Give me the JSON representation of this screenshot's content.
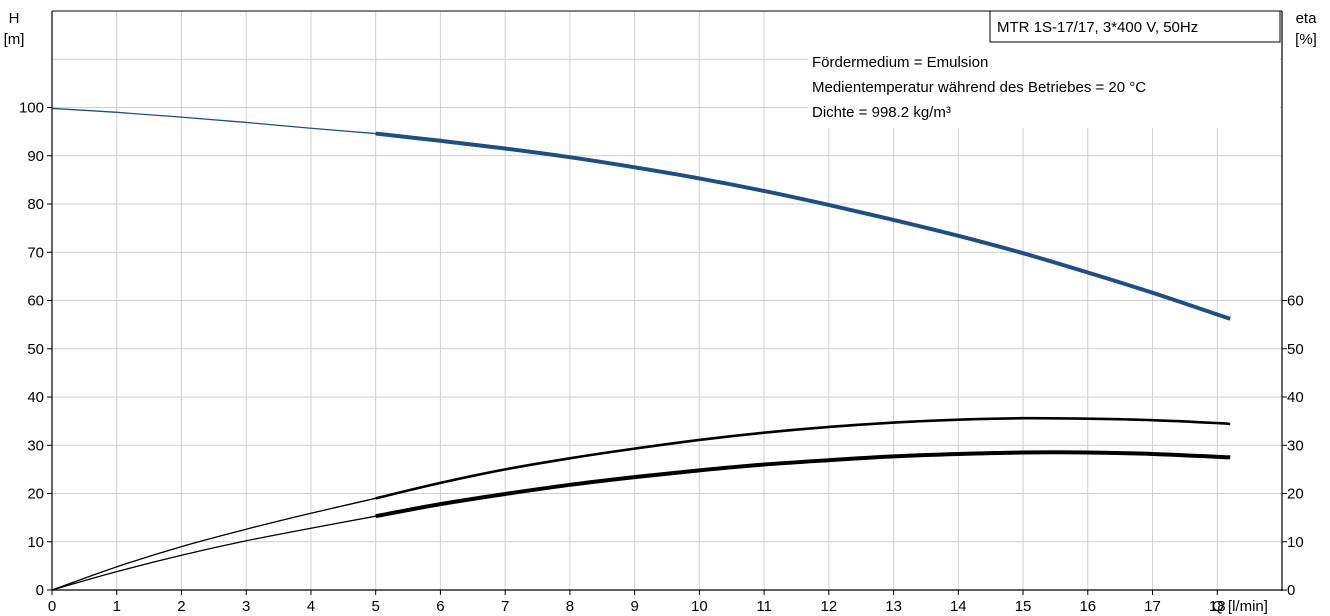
{
  "chart_data": {
    "type": "line",
    "title": "MTR 1S-17/17, 3*400 V, 50Hz",
    "annotations": [
      "Fördermedium = Emulsion",
      "Medientemperatur während des Betriebes = 20 °C",
      "Dichte = 998.2 kg/m³"
    ],
    "x_axis": {
      "label": "Q [l/min]",
      "ticks": [
        0,
        1,
        2,
        3,
        4,
        5,
        6,
        7,
        8,
        9,
        10,
        11,
        12,
        13,
        14,
        15,
        16,
        17,
        18
      ],
      "range": [
        0,
        19
      ]
    },
    "y_axis_left": {
      "label_line1": "H",
      "label_line2": "[m]",
      "ticks": [
        0,
        10,
        20,
        30,
        40,
        50,
        60,
        70,
        80,
        90,
        100
      ],
      "range": [
        0,
        120
      ]
    },
    "y_axis_right": {
      "label_line1": "eta",
      "label_line2": "[%]",
      "ticks": [
        0,
        10,
        20,
        30,
        40,
        50,
        60
      ],
      "range": [
        0,
        120
      ]
    },
    "grid": true,
    "series": [
      {
        "axis": "left",
        "color": "#1d4f86",
        "thin_until_x": 5,
        "x": [
          0,
          1,
          2,
          3,
          4,
          5,
          6,
          7,
          8,
          9,
          10,
          11,
          12,
          13,
          14,
          15,
          16,
          17,
          18,
          18.2
        ],
        "y": [
          99.8,
          99.0,
          98.0,
          96.9,
          95.7,
          94.6,
          93.1,
          91.5,
          89.7,
          87.6,
          85.3,
          82.7,
          79.8,
          76.7,
          73.4,
          69.8,
          65.8,
          61.6,
          57.1,
          56.2
        ]
      },
      {
        "axis": "right",
        "color": "#000000",
        "thin_until_x": 5,
        "x": [
          0,
          1,
          2,
          3,
          4,
          5,
          6,
          7,
          8,
          9,
          10,
          11,
          12,
          13,
          14,
          15,
          16,
          17,
          18,
          18.2
        ],
        "y": [
          0,
          4.8,
          9.0,
          12.6,
          15.9,
          19.0,
          22.2,
          25.0,
          27.3,
          29.3,
          31.1,
          32.6,
          33.8,
          34.7,
          35.3,
          35.6,
          35.5,
          35.2,
          34.6,
          34.4
        ]
      },
      {
        "axis": "right",
        "color": "#000000",
        "thin_until_x": 5,
        "thick": true,
        "x": [
          0,
          1,
          2,
          3,
          4,
          5,
          6,
          7,
          8,
          9,
          10,
          11,
          12,
          13,
          14,
          15,
          16,
          17,
          18,
          18.2
        ],
        "y": [
          0,
          3.8,
          7.2,
          10.2,
          12.8,
          15.3,
          17.8,
          19.9,
          21.8,
          23.4,
          24.8,
          26.0,
          26.9,
          27.7,
          28.2,
          28.5,
          28.5,
          28.2,
          27.6,
          27.5
        ]
      }
    ]
  }
}
